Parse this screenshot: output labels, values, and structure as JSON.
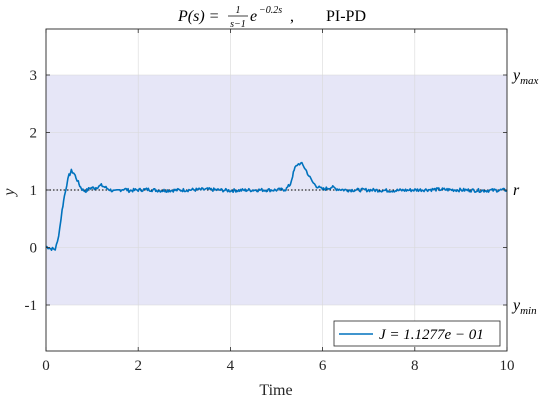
{
  "chart_data": {
    "type": "line",
    "title": "P(s) = 1/(s−1) e^(−0.2s),    PI-PD",
    "title_parts": {
      "lhs": "P(s) =",
      "frac_num": "1",
      "frac_den": "s−1",
      "exp_base": "e",
      "exp_power": "−0.2s",
      "sep": ",",
      "method": "PI-PD"
    },
    "xlabel": "Time",
    "ylabel": "y",
    "xlim": [
      0,
      10
    ],
    "ylim": [
      -1.8,
      3.8
    ],
    "xticks": [
      0,
      2,
      4,
      6,
      8,
      10
    ],
    "yticks": [
      -1,
      0,
      1,
      2,
      3
    ],
    "xtick_labels": [
      "0",
      "2",
      "4",
      "6",
      "8",
      "10"
    ],
    "ytick_labels": [
      "-1",
      "0",
      "1",
      "2",
      "3"
    ],
    "grid": true,
    "legend_position": "bottom-right",
    "band": {
      "lower": -1,
      "upper": 3,
      "color": "#e6e6f7"
    },
    "reference": {
      "value": 1,
      "style": "dotted",
      "color": "#000000"
    },
    "right_labels": [
      {
        "value": 3,
        "base": "y",
        "sub": "max"
      },
      {
        "value": 1,
        "base": "r",
        "sub": ""
      },
      {
        "value": -1,
        "base": "y",
        "sub": "min"
      }
    ],
    "series": [
      {
        "name": "J = 1.1277e − 01",
        "color": "#0072bd",
        "x": [
          0,
          0.1,
          0.2,
          0.25,
          0.3,
          0.35,
          0.4,
          0.45,
          0.5,
          0.55,
          0.6,
          0.65,
          0.7,
          0.75,
          0.8,
          0.85,
          0.9,
          0.95,
          1.0,
          1.05,
          1.1,
          1.2,
          1.3,
          1.4,
          1.5,
          1.6,
          1.7,
          1.8,
          2.0,
          2.2,
          2.5,
          3.0,
          3.5,
          4.0,
          4.5,
          5.0,
          5.2,
          5.3,
          5.35,
          5.4,
          5.45,
          5.5,
          5.55,
          5.6,
          5.65,
          5.7,
          5.75,
          5.8,
          5.85,
          5.9,
          5.95,
          6.0,
          6.1,
          6.2,
          6.3,
          6.5,
          7.0,
          7.5,
          8.0,
          8.5,
          9.0,
          9.5,
          10.0
        ],
        "y": [
          0.02,
          -0.02,
          -0.03,
          0.1,
          0.35,
          0.65,
          0.9,
          1.1,
          1.25,
          1.33,
          1.3,
          1.22,
          1.13,
          1.05,
          1.0,
          0.98,
          1.0,
          1.03,
          1.04,
          1.03,
          1.05,
          1.08,
          1.04,
          1.0,
          0.97,
          1.0,
          1.02,
          0.99,
          1.0,
          1.01,
          0.99,
          1.0,
          1.01,
          0.99,
          1.0,
          1.0,
          1.01,
          1.1,
          1.25,
          1.38,
          1.44,
          1.46,
          1.45,
          1.4,
          1.33,
          1.25,
          1.18,
          1.12,
          1.08,
          1.05,
          1.03,
          1.01,
          1.03,
          1.05,
          1.02,
          1.0,
          1.0,
          0.99,
          1.0,
          1.01,
          1.0,
          0.99,
          1.0
        ]
      }
    ]
  }
}
